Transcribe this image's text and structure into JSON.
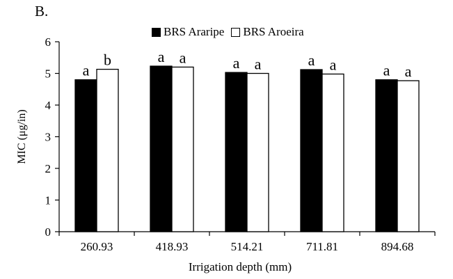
{
  "panel_label": "B.",
  "chart_data": {
    "type": "bar",
    "categories": [
      "260.93",
      "418.93",
      "514.21",
      "711.81",
      "894.68"
    ],
    "series": [
      {
        "name": "BRS Araripe",
        "values": [
          4.8,
          5.23,
          5.03,
          5.12,
          4.8
        ],
        "letters": [
          "a",
          "a",
          "a",
          "a",
          "a"
        ],
        "color": "#000000"
      },
      {
        "name": "BRS Aroeira",
        "values": [
          5.13,
          5.2,
          5.0,
          4.98,
          4.77
        ],
        "letters": [
          "b",
          "a",
          "a",
          "a",
          "a"
        ],
        "color": "#ffffff"
      }
    ],
    "xlabel": "Irrigation depth (mm)",
    "ylabel": "MIC (μg/in)",
    "ylim": [
      0,
      6
    ],
    "yticks": [
      0,
      1,
      2,
      3,
      4,
      5,
      6
    ],
    "grid": false,
    "legend_position": "top"
  }
}
